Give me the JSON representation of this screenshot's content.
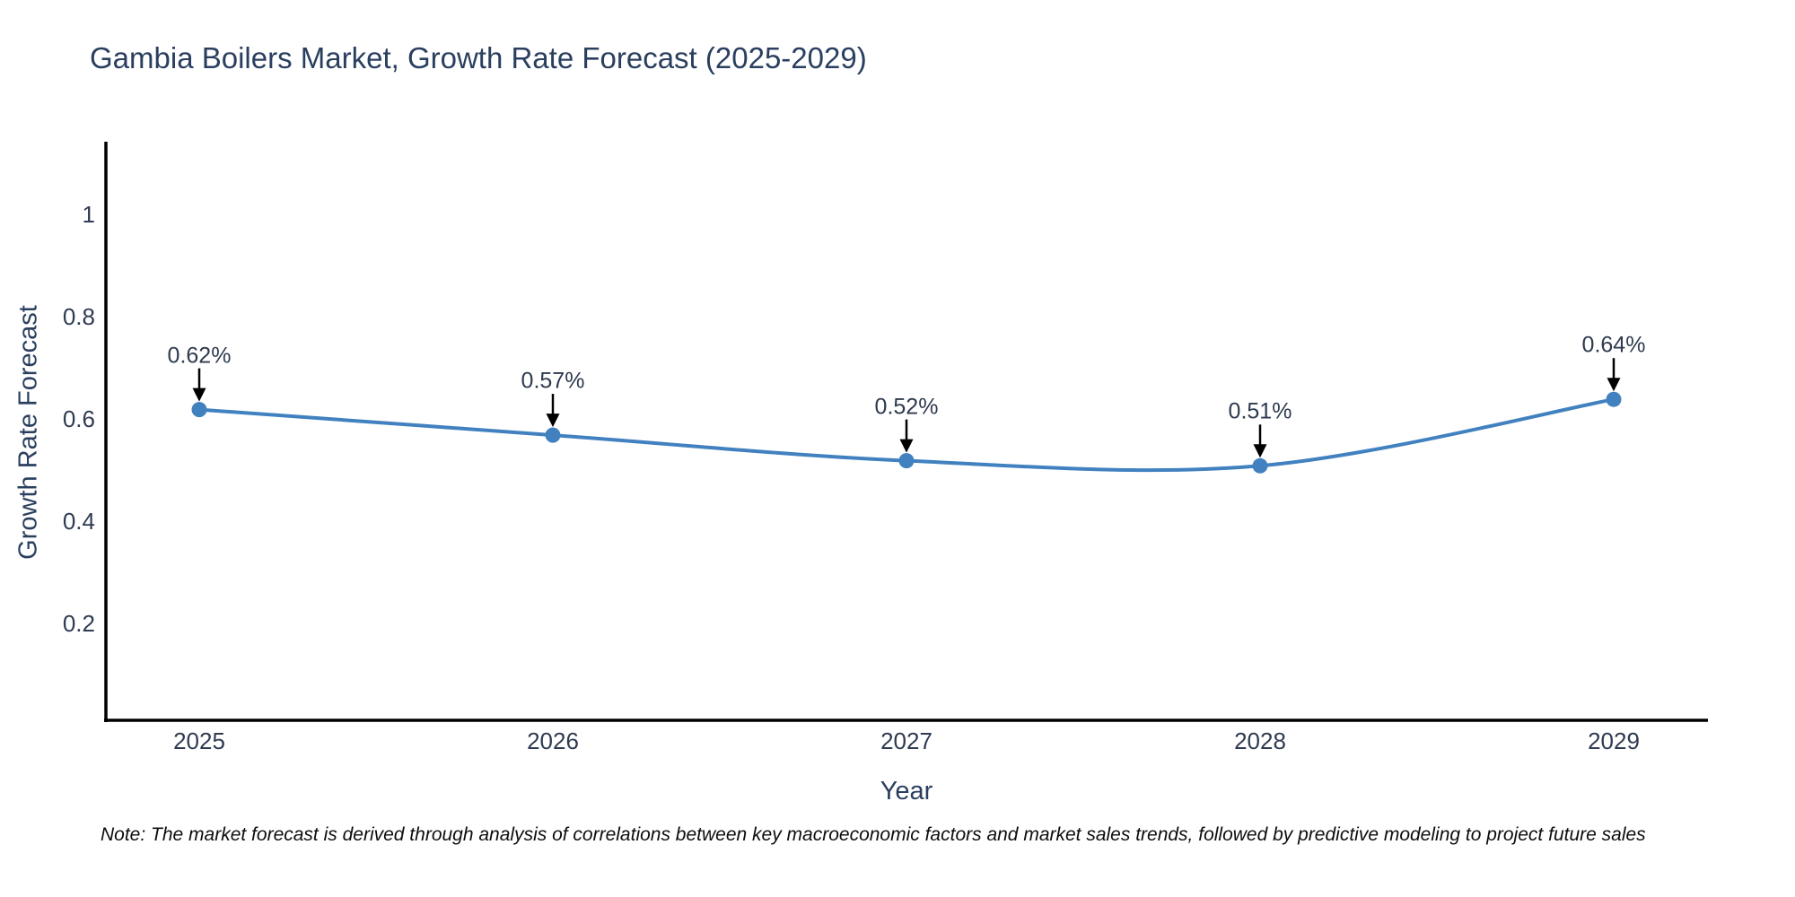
{
  "title": "Gambia Boilers Market, Growth Rate Forecast (2025-2029)",
  "note": "Note: The market forecast is derived through analysis of correlations between key macroeconomic factors and market sales trends, followed by predictive modeling to project future sales",
  "x_axis": {
    "label": "Year"
  },
  "y_axis": {
    "label": "Growth Rate Forecast"
  },
  "colors": {
    "line": "#4181bf",
    "marker": "#4181bf",
    "axis": "#000000",
    "arrow": "#000000",
    "title_text": "#2a3f5f",
    "tick_text": "#2f3b52",
    "label_text": "#2e3a4e"
  },
  "chart_data": {
    "type": "line",
    "title": "Gambia Boilers Market, Growth Rate Forecast (2025-2029)",
    "xlabel": "Year",
    "ylabel": "Growth Rate Forecast",
    "x": [
      2025,
      2026,
      2027,
      2028,
      2029
    ],
    "xtick_labels": [
      "2025",
      "2026",
      "2027",
      "2028",
      "2029"
    ],
    "series": [
      {
        "name": "Growth Rate Forecast",
        "values": [
          0.62,
          0.57,
          0.52,
          0.51,
          0.64
        ]
      }
    ],
    "point_labels": [
      "0.62%",
      "0.57%",
      "0.52%",
      "0.51%",
      "0.64%"
    ],
    "yticks": [
      0.2,
      0.4,
      0.6,
      0.8,
      1
    ],
    "ytick_labels": [
      "0.2",
      "0.4",
      "0.6",
      "0.8",
      "1"
    ],
    "ylim": [
      0.01,
      1.14
    ],
    "grid": false,
    "legend": "none",
    "line_shape": "spline"
  }
}
